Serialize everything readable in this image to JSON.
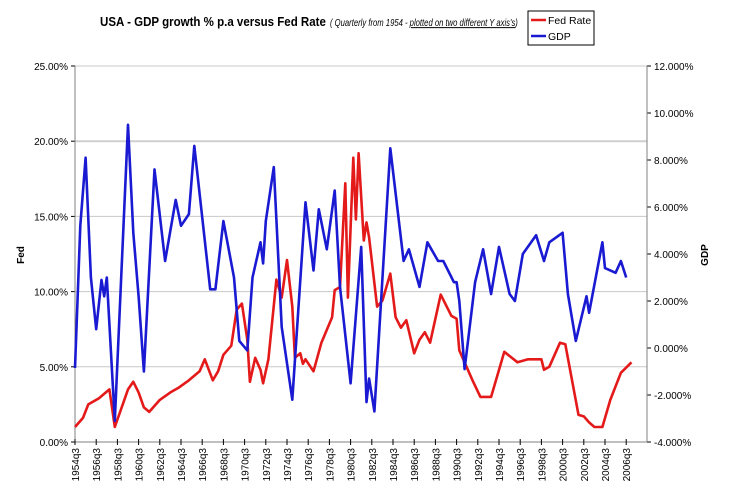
{
  "chart_data": {
    "type": "line",
    "title": "USA - GDP growth % p.a versus Fed Rate",
    "subtitle_prefix": "( Quarterly from 1954 - ",
    "subtitle_underlined": "plotted on two different Y axis's",
    "subtitle_suffix": ")",
    "ylabel_left": "Fed",
    "ylabel_right": "GDP",
    "ylim_left": [
      0,
      25
    ],
    "ylim_right": [
      -4,
      12
    ],
    "yticks_left": [
      "0.00%",
      "5.00%",
      "10.00%",
      "15.00%",
      "20.00%",
      "25.00%"
    ],
    "yticks_right": [
      "-4.000%",
      "-2.000%",
      "0.000%",
      "2.000%",
      "4.000%",
      "6.000%",
      "8.000%",
      "10.000%",
      "12.000%"
    ],
    "xticks": [
      "1954q3",
      "1956q3",
      "1958q3",
      "1960q3",
      "1962q3",
      "1964q3",
      "1966q3",
      "1968q3",
      "1970q3",
      "1972q3",
      "1974q3",
      "1976q3",
      "1978q3",
      "1980q3",
      "1982q3",
      "1984q3",
      "1986q3",
      "1988q3",
      "1990q3",
      "1992q3",
      "1994q3",
      "1996q3",
      "1998q3",
      "2000q3",
      "2002q3",
      "2004q3",
      "2006q3"
    ],
    "grid": "horizontal",
    "legend": "top-right",
    "series": [
      {
        "name": "Fed Rate",
        "axis": "left",
        "color": "#e41a1a",
        "points": [
          [
            "1954q3",
            1.0
          ],
          [
            "1955q2",
            1.6
          ],
          [
            "1955q4",
            2.5
          ],
          [
            "1956q4",
            2.9
          ],
          [
            "1957q4",
            3.5
          ],
          [
            "1958q2",
            1.0
          ],
          [
            "1959q3",
            3.5
          ],
          [
            "1960q1",
            4.0
          ],
          [
            "1960q3",
            3.3
          ],
          [
            "1961q1",
            2.3
          ],
          [
            "1961q3",
            2.0
          ],
          [
            "1962q3",
            2.8
          ],
          [
            "1963q3",
            3.3
          ],
          [
            "1964q2",
            3.6
          ],
          [
            "1965q2",
            4.1
          ],
          [
            "1966q2",
            4.7
          ],
          [
            "1966q4",
            5.5
          ],
          [
            "1967q3",
            4.1
          ],
          [
            "1968q1",
            4.7
          ],
          [
            "1968q3",
            5.8
          ],
          [
            "1969q2",
            6.4
          ],
          [
            "1969q4",
            8.8
          ],
          [
            "1970q2",
            9.2
          ],
          [
            "1970q4",
            6.8
          ],
          [
            "1971q1",
            4.0
          ],
          [
            "1971q3",
            5.6
          ],
          [
            "1972q1",
            4.8
          ],
          [
            "1972q2",
            3.9
          ],
          [
            "1972q4",
            5.5
          ],
          [
            "1973q3",
            10.8
          ],
          [
            "1974q1",
            9.6
          ],
          [
            "1974q3",
            12.1
          ],
          [
            "1975q1",
            9.0
          ],
          [
            "1975q2",
            5.6
          ],
          [
            "1975q4",
            5.9
          ],
          [
            "1976q1",
            5.2
          ],
          [
            "1976q2",
            5.5
          ],
          [
            "1977q1",
            4.7
          ],
          [
            "1977q4",
            6.6
          ],
          [
            "1978q4",
            8.3
          ],
          [
            "1979q1",
            10.1
          ],
          [
            "1979q3",
            10.3
          ],
          [
            "1980q1",
            17.2
          ],
          [
            "1980q2",
            9.6
          ],
          [
            "1980q4",
            18.9
          ],
          [
            "1981q1",
            14.8
          ],
          [
            "1981q2",
            19.2
          ],
          [
            "1981q4",
            13.4
          ],
          [
            "1982q1",
            14.6
          ],
          [
            "1982q2",
            13.6
          ],
          [
            "1983q1",
            9.0
          ],
          [
            "1983q3",
            9.4
          ],
          [
            "1984q2",
            11.2
          ],
          [
            "1984q4",
            8.3
          ],
          [
            "1985q2",
            7.6
          ],
          [
            "1985q4",
            8.1
          ],
          [
            "1986q3",
            5.9
          ],
          [
            "1987q1",
            6.8
          ],
          [
            "1987q3",
            7.3
          ],
          [
            "1988q1",
            6.6
          ],
          [
            "1989q1",
            9.8
          ],
          [
            "1990q1",
            8.4
          ],
          [
            "1990q3",
            8.2
          ],
          [
            "1990q4",
            6.1
          ],
          [
            "1992q1",
            4.1
          ],
          [
            "1992q4",
            3.0
          ],
          [
            "1993q4",
            3.0
          ],
          [
            "1995q1",
            6.0
          ],
          [
            "1996q2",
            5.3
          ],
          [
            "1997q2",
            5.5
          ],
          [
            "1998q3",
            5.5
          ],
          [
            "1998q4",
            4.8
          ],
          [
            "1999q2",
            5.0
          ],
          [
            "2000q2",
            6.6
          ],
          [
            "2000q4",
            6.5
          ],
          [
            "2002q1",
            1.8
          ],
          [
            "2002q3",
            1.7
          ],
          [
            "2003q1",
            1.3
          ],
          [
            "2003q3",
            1.0
          ],
          [
            "2004q2",
            1.0
          ],
          [
            "2005q1",
            2.8
          ],
          [
            "2006q1",
            4.6
          ],
          [
            "2007q1",
            5.3
          ]
        ]
      },
      {
        "name": "GDP",
        "axis": "right",
        "color": "#1a1ad2",
        "points": [
          [
            "1954q3",
            -0.85
          ],
          [
            "1955q1",
            5.2
          ],
          [
            "1955q3",
            8.1
          ],
          [
            "1956q1",
            3.0
          ],
          [
            "1956q3",
            0.8
          ],
          [
            "1957q1",
            2.9
          ],
          [
            "1957q2",
            2.2
          ],
          [
            "1957q3",
            3.0
          ],
          [
            "1958q2",
            -3.1
          ],
          [
            "1959q3",
            9.5
          ],
          [
            "1960q1",
            4.9
          ],
          [
            "1960q3",
            2.2
          ],
          [
            "1961q1",
            -1.0
          ],
          [
            "1962q1",
            7.6
          ],
          [
            "1963q1",
            3.7
          ],
          [
            "1964q1",
            6.3
          ],
          [
            "1964q3",
            5.2
          ],
          [
            "1965q2",
            5.7
          ],
          [
            "1965q4",
            8.6
          ],
          [
            "1967q2",
            2.5
          ],
          [
            "1967q4",
            2.5
          ],
          [
            "1968q3",
            5.4
          ],
          [
            "1969q3",
            3.0
          ],
          [
            "1970q1",
            0.3
          ],
          [
            "1970q4",
            -0.1
          ],
          [
            "1971q2",
            3.0
          ],
          [
            "1972q1",
            4.5
          ],
          [
            "1972q2",
            3.6
          ],
          [
            "1972q3",
            5.4
          ],
          [
            "1973q2",
            7.7
          ],
          [
            "1974q1",
            0.9
          ],
          [
            "1975q1",
            -2.2
          ],
          [
            "1976q2",
            6.2
          ],
          [
            "1977q1",
            3.3
          ],
          [
            "1977q3",
            5.9
          ],
          [
            "1978q2",
            4.2
          ],
          [
            "1979q1",
            6.7
          ],
          [
            "1979q3",
            2.6
          ],
          [
            "1980q3",
            -1.5
          ],
          [
            "1981q3",
            4.3
          ],
          [
            "1982q1",
            -2.3
          ],
          [
            "1982q2",
            -1.3
          ],
          [
            "1982q4",
            -2.7
          ],
          [
            "1984q2",
            8.5
          ],
          [
            "1985q3",
            3.7
          ],
          [
            "1986q1",
            4.2
          ],
          [
            "1987q1",
            2.6
          ],
          [
            "1987q4",
            4.5
          ],
          [
            "1988q4",
            3.7
          ],
          [
            "1989q2",
            3.7
          ],
          [
            "1990q2",
            2.8
          ],
          [
            "1990q3",
            2.8
          ],
          [
            "1990q4",
            2.0
          ],
          [
            "1991q2",
            -0.9
          ],
          [
            "1992q2",
            2.8
          ],
          [
            "1993q1",
            4.2
          ],
          [
            "1993q4",
            2.3
          ],
          [
            "1994q3",
            4.3
          ],
          [
            "1995q3",
            2.3
          ],
          [
            "1996q1",
            2.0
          ],
          [
            "1996q4",
            4.0
          ],
          [
            "1998q1",
            4.8
          ],
          [
            "1998q4",
            3.7
          ],
          [
            "1999q2",
            4.5
          ],
          [
            "2000q3",
            4.9
          ],
          [
            "2001q1",
            2.3
          ],
          [
            "2001q4",
            0.3
          ],
          [
            "2002q4",
            2.2
          ],
          [
            "2003q1",
            1.5
          ],
          [
            "2004q2",
            4.5
          ],
          [
            "2004q3",
            3.4
          ],
          [
            "2005q3",
            3.2
          ],
          [
            "2006q1",
            3.7
          ],
          [
            "2006q3",
            3.0
          ]
        ]
      }
    ]
  }
}
